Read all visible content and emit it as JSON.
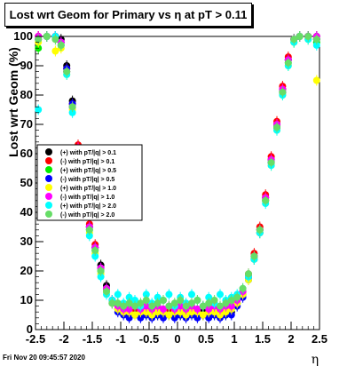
{
  "chart_data": {
    "type": "scatter",
    "title": "Lost wrt Geom for Primary vs   η at pT > 0.11",
    "xlabel": "η",
    "ylabel": "Lost wrt Geom (%)",
    "xlim": [
      -2.5,
      2.5
    ],
    "ylim": [
      0,
      100
    ],
    "x_ticks": [
      "-2.5",
      "-2",
      "-1.5",
      "-1",
      "-0.5",
      "0",
      "0.5",
      "1",
      "1.5",
      "2",
      "2.5"
    ],
    "y_ticks": [
      "0",
      "10",
      "20",
      "30",
      "40",
      "50",
      "60",
      "70",
      "80",
      "90",
      "100"
    ],
    "grid": false,
    "legend_position": "middle-left",
    "series": [
      {
        "name": "(+) with pT/|q| > 0.1",
        "color": "#000000",
        "x": [
          -2.45,
          -2.3,
          -2.15,
          -2.05,
          -1.95,
          -1.85,
          -1.75,
          -1.65,
          -1.55,
          -1.45,
          -1.35,
          -1.25,
          -1.15,
          -1.05,
          -0.95,
          -0.85,
          -0.75,
          -0.65,
          -0.55,
          -0.45,
          -0.35,
          -0.25,
          -0.15,
          -0.05,
          0.05,
          0.15,
          0.25,
          0.35,
          0.45,
          0.55,
          0.65,
          0.75,
          0.85,
          0.95,
          1.05,
          1.15,
          1.25,
          1.35,
          1.45,
          1.55,
          1.65,
          1.75,
          1.85,
          1.95,
          2.05,
          2.15,
          2.3,
          2.45
        ],
        "y": [
          100,
          100,
          100,
          99,
          90,
          78,
          62,
          45,
          35,
          28,
          22,
          15,
          10,
          7,
          6,
          5,
          6,
          5,
          6,
          5,
          6,
          5,
          6,
          5,
          6,
          5,
          6,
          5,
          6,
          5,
          6,
          5,
          6,
          6,
          9,
          12,
          18,
          25,
          34,
          45,
          58,
          70,
          82,
          92,
          99,
          100,
          100,
          100
        ]
      },
      {
        "name": "(-) with pT/|q| > 0.1",
        "color": "#ff0000",
        "x": [
          -2.45,
          -2.3,
          -2.15,
          -2.05,
          -1.95,
          -1.85,
          -1.75,
          -1.65,
          -1.55,
          -1.45,
          -1.35,
          -1.25,
          -1.15,
          -1.05,
          -0.95,
          -0.85,
          -0.75,
          -0.65,
          -0.55,
          -0.45,
          -0.35,
          -0.25,
          -0.15,
          -0.05,
          0.05,
          0.15,
          0.25,
          0.35,
          0.45,
          0.55,
          0.65,
          0.75,
          0.85,
          0.95,
          1.05,
          1.15,
          1.25,
          1.35,
          1.45,
          1.55,
          1.65,
          1.75,
          1.85,
          1.95,
          2.05,
          2.15,
          2.3,
          2.45
        ],
        "y": [
          100,
          100,
          100,
          98,
          89,
          77,
          63,
          46,
          36,
          29,
          21,
          14,
          10,
          8,
          7,
          6,
          6,
          6,
          7,
          6,
          5,
          6,
          7,
          6,
          5,
          6,
          7,
          6,
          5,
          6,
          7,
          6,
          6,
          7,
          10,
          13,
          19,
          26,
          35,
          46,
          59,
          71,
          83,
          93,
          99,
          100,
          100,
          99
        ]
      },
      {
        "name": "(+) with pT/|q| > 0.5",
        "color": "#00ee00",
        "x": [
          -2.45,
          -2.3,
          -2.15,
          -2.05,
          -1.95,
          -1.85,
          -1.75,
          -1.65,
          -1.55,
          -1.45,
          -1.35,
          -1.25,
          -1.15,
          -1.05,
          -0.95,
          -0.85,
          -0.75,
          -0.65,
          -0.55,
          -0.45,
          -0.35,
          -0.25,
          -0.15,
          -0.05,
          0.05,
          0.15,
          0.25,
          0.35,
          0.45,
          0.55,
          0.65,
          0.75,
          0.85,
          0.95,
          1.05,
          1.15,
          1.25,
          1.35,
          1.45,
          1.55,
          1.65,
          1.75,
          1.85,
          1.95,
          2.05,
          2.15,
          2.3,
          2.45
        ],
        "y": [
          96,
          100,
          100,
          97,
          88,
          76,
          61,
          44,
          34,
          27,
          20,
          13,
          9,
          7,
          6,
          5,
          5,
          6,
          5,
          6,
          5,
          6,
          5,
          6,
          5,
          6,
          5,
          6,
          5,
          6,
          5,
          6,
          5,
          7,
          9,
          12,
          17,
          24,
          33,
          44,
          57,
          69,
          81,
          91,
          98,
          100,
          100,
          98
        ]
      },
      {
        "name": "(-) with pT/|q| > 0.5",
        "color": "#0000ff",
        "x": [
          -2.45,
          -2.3,
          -2.15,
          -2.05,
          -1.95,
          -1.85,
          -1.75,
          -1.65,
          -1.55,
          -1.45,
          -1.35,
          -1.25,
          -1.15,
          -1.05,
          -0.95,
          -0.85,
          -0.75,
          -0.65,
          -0.55,
          -0.45,
          -0.35,
          -0.25,
          -0.15,
          -0.05,
          0.05,
          0.15,
          0.25,
          0.35,
          0.45,
          0.55,
          0.65,
          0.75,
          0.85,
          0.95,
          1.05,
          1.15,
          1.25,
          1.35,
          1.45,
          1.55,
          1.65,
          1.75,
          1.85,
          1.95,
          2.05,
          2.15,
          2.3,
          2.45
        ],
        "y": [
          99,
          100,
          100,
          98,
          89,
          77,
          62,
          45,
          35,
          28,
          21,
          14,
          9,
          6,
          5,
          4,
          5,
          4,
          5,
          4,
          5,
          4,
          5,
          4,
          5,
          4,
          5,
          4,
          5,
          4,
          5,
          4,
          5,
          5,
          8,
          11,
          17,
          24,
          33,
          44,
          57,
          69,
          81,
          92,
          99,
          100,
          100,
          99
        ]
      },
      {
        "name": "(+) with pT/|q| > 1.0",
        "color": "#ffff00",
        "x": [
          -2.45,
          -2.3,
          -2.15,
          -2.05,
          -1.95,
          -1.85,
          -1.75,
          -1.65,
          -1.55,
          -1.45,
          -1.35,
          -1.25,
          -1.15,
          -1.05,
          -0.95,
          -0.85,
          -0.75,
          -0.65,
          -0.55,
          -0.45,
          -0.35,
          -0.25,
          -0.15,
          -0.05,
          0.05,
          0.15,
          0.25,
          0.35,
          0.45,
          0.55,
          0.65,
          0.75,
          0.85,
          0.95,
          1.05,
          1.15,
          1.25,
          1.35,
          1.45,
          1.55,
          1.65,
          1.75,
          1.85,
          1.95,
          2.05,
          2.15,
          2.3,
          2.45
        ],
        "y": [
          98,
          100,
          95,
          96,
          87,
          75,
          60,
          43,
          33,
          26,
          19,
          13,
          9,
          7,
          6,
          6,
          5,
          6,
          6,
          5,
          6,
          6,
          5,
          6,
          6,
          5,
          6,
          6,
          5,
          6,
          6,
          5,
          6,
          7,
          9,
          12,
          17,
          24,
          33,
          44,
          56,
          68,
          80,
          90,
          98,
          100,
          99,
          85
        ]
      },
      {
        "name": "(-) with pT/|q| > 1.0",
        "color": "#ff00ff",
        "x": [
          -2.45,
          -2.3,
          -2.15,
          -2.05,
          -1.95,
          -1.85,
          -1.75,
          -1.65,
          -1.55,
          -1.45,
          -1.35,
          -1.25,
          -1.15,
          -1.05,
          -0.95,
          -0.85,
          -0.75,
          -0.65,
          -0.55,
          -0.45,
          -0.35,
          -0.25,
          -0.15,
          -0.05,
          0.05,
          0.15,
          0.25,
          0.35,
          0.45,
          0.55,
          0.65,
          0.75,
          0.85,
          0.95,
          1.05,
          1.15,
          1.25,
          1.35,
          1.45,
          1.55,
          1.65,
          1.75,
          1.85,
          1.95,
          2.05,
          2.15,
          2.3,
          2.45
        ],
        "y": [
          100,
          100,
          100,
          98,
          88,
          76,
          62,
          45,
          35,
          28,
          21,
          14,
          10,
          8,
          7,
          7,
          8,
          7,
          8,
          7,
          8,
          7,
          8,
          7,
          8,
          7,
          8,
          7,
          8,
          7,
          8,
          7,
          8,
          8,
          10,
          13,
          18,
          25,
          34,
          45,
          58,
          70,
          82,
          92,
          99,
          100,
          100,
          100
        ]
      },
      {
        "name": "(+) with pT/|q| > 2.0",
        "color": "#00ffff",
        "x": [
          -2.45,
          -2.3,
          -2.15,
          -2.05,
          -1.95,
          -1.85,
          -1.75,
          -1.65,
          -1.55,
          -1.45,
          -1.35,
          -1.25,
          -1.15,
          -1.05,
          -0.95,
          -0.85,
          -0.75,
          -0.65,
          -0.55,
          -0.45,
          -0.35,
          -0.25,
          -0.15,
          -0.05,
          0.05,
          0.15,
          0.25,
          0.35,
          0.45,
          0.55,
          0.65,
          0.75,
          0.85,
          0.95,
          1.05,
          1.15,
          1.25,
          1.35,
          1.45,
          1.55,
          1.65,
          1.75,
          1.85,
          1.95,
          2.05,
          2.15,
          2.3,
          2.45
        ],
        "y": [
          75,
          100,
          100,
          97,
          87,
          74,
          59,
          42,
          32,
          25,
          18,
          12,
          10,
          12,
          9,
          11,
          10,
          8,
          12,
          9,
          11,
          10,
          12,
          8,
          11,
          9,
          12,
          10,
          8,
          11,
          9,
          12,
          10,
          11,
          12,
          14,
          18,
          24,
          33,
          43,
          56,
          68,
          80,
          90,
          98,
          100,
          99,
          97
        ]
      },
      {
        "name": "(-) with pT/|q| > 2.0",
        "color": "#66dd66",
        "x": [
          -2.45,
          -2.3,
          -2.15,
          -2.05,
          -1.95,
          -1.85,
          -1.75,
          -1.65,
          -1.55,
          -1.45,
          -1.35,
          -1.25,
          -1.15,
          -1.05,
          -0.95,
          -0.85,
          -0.75,
          -0.65,
          -0.55,
          -0.45,
          -0.35,
          -0.25,
          -0.15,
          -0.05,
          0.05,
          0.15,
          0.25,
          0.35,
          0.45,
          0.55,
          0.65,
          0.75,
          0.85,
          0.95,
          1.05,
          1.15,
          1.25,
          1.35,
          1.45,
          1.55,
          1.65,
          1.75,
          1.85,
          1.95,
          2.05,
          2.15,
          2.3,
          2.45
        ],
        "y": [
          99,
          100,
          99,
          97,
          88,
          76,
          61,
          44,
          34,
          27,
          20,
          13,
          9,
          9,
          8,
          9,
          8,
          9,
          10,
          8,
          9,
          10,
          8,
          9,
          10,
          8,
          9,
          10,
          8,
          9,
          10,
          8,
          9,
          10,
          11,
          14,
          19,
          25,
          34,
          44,
          57,
          69,
          81,
          91,
          99,
          100,
          100,
          99
        ]
      }
    ]
  },
  "footer": {
    "timestamp": "Fri Nov 20 09:45:57 2020"
  }
}
